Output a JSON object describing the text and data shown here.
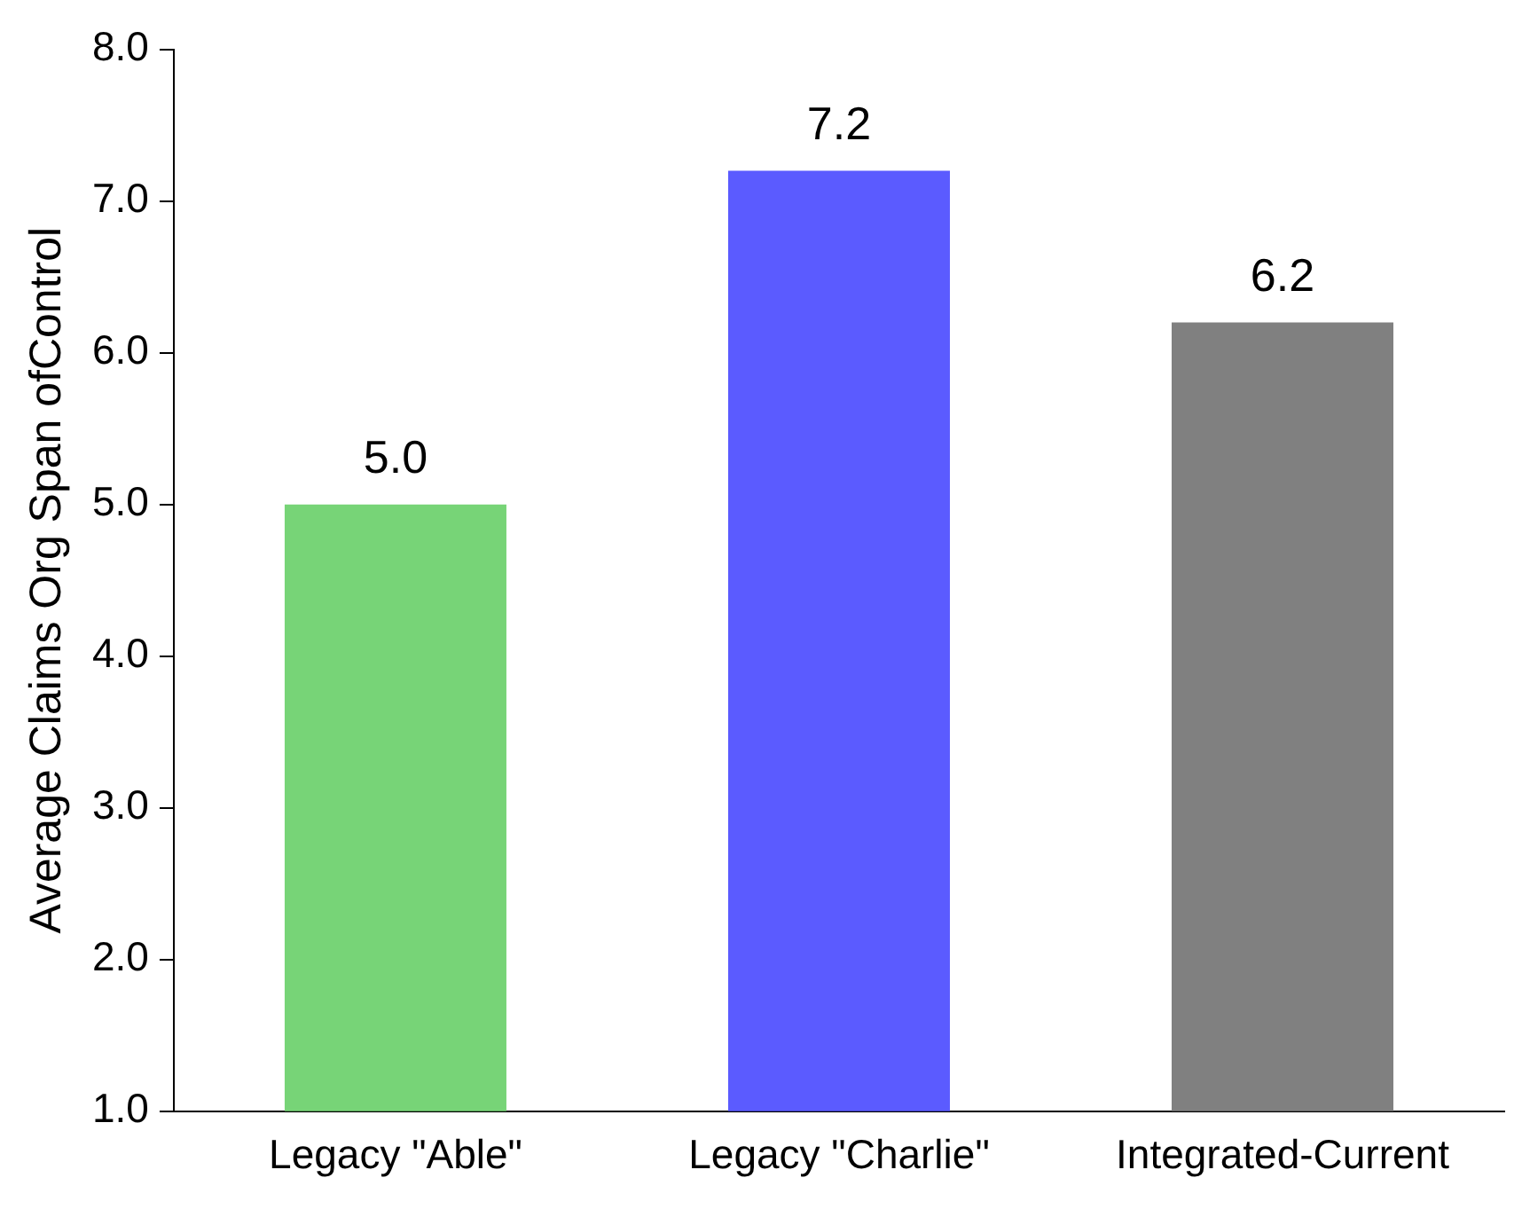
{
  "chart_data": {
    "type": "bar",
    "ylabel": "Average Claims Org Span ofControl",
    "categories": [
      "Legacy \"Able\"",
      "Legacy \"Charlie\"",
      "Integrated-Current"
    ],
    "values": [
      5.0,
      7.2,
      6.2
    ],
    "colors": [
      "#77d477",
      "#5b5bff",
      "#808080"
    ],
    "value_labels": [
      "5.0",
      "7.2",
      "6.2"
    ],
    "ylim": [
      1,
      8
    ],
    "yticks": [
      {
        "value": 1,
        "label": "1.0"
      },
      {
        "value": 2,
        "label": "2.0"
      },
      {
        "value": 3,
        "label": "3.0"
      },
      {
        "value": 4,
        "label": "4.0"
      },
      {
        "value": 5,
        "label": "5.0"
      },
      {
        "value": 6,
        "label": "6.0"
      },
      {
        "value": 7,
        "label": "7.0"
      },
      {
        "value": 8,
        "label": "8.0"
      }
    ],
    "grid": false,
    "legend": false
  }
}
